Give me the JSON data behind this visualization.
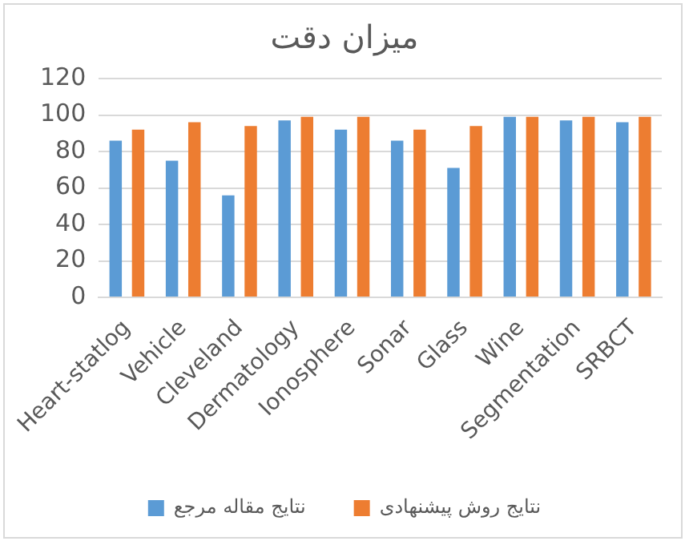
{
  "chart_data": {
    "type": "bar",
    "title": "میزان دقت",
    "categories": [
      "Heart-statlog",
      "Vehicle",
      "Cleveland",
      "Dermatology",
      "Ionosphere",
      "Sonar",
      "Glass",
      "Wine",
      "Segmentation",
      "SRBCT"
    ],
    "series": [
      {
        "name": "نتایج مقاله مرجع",
        "color": "#5b9bd5",
        "values": [
          86,
          75,
          56,
          97,
          92,
          86,
          71,
          99,
          97,
          96
        ]
      },
      {
        "name": "نتایج روش پیشنهادی",
        "color": "#ed7d31",
        "values": [
          92,
          96,
          94,
          99,
          99,
          92,
          94,
          99,
          99,
          99
        ]
      }
    ],
    "ylim": [
      0,
      120
    ],
    "yticks": [
      0,
      20,
      40,
      60,
      80,
      100,
      120
    ],
    "grid": "y",
    "legend": "bottom"
  }
}
